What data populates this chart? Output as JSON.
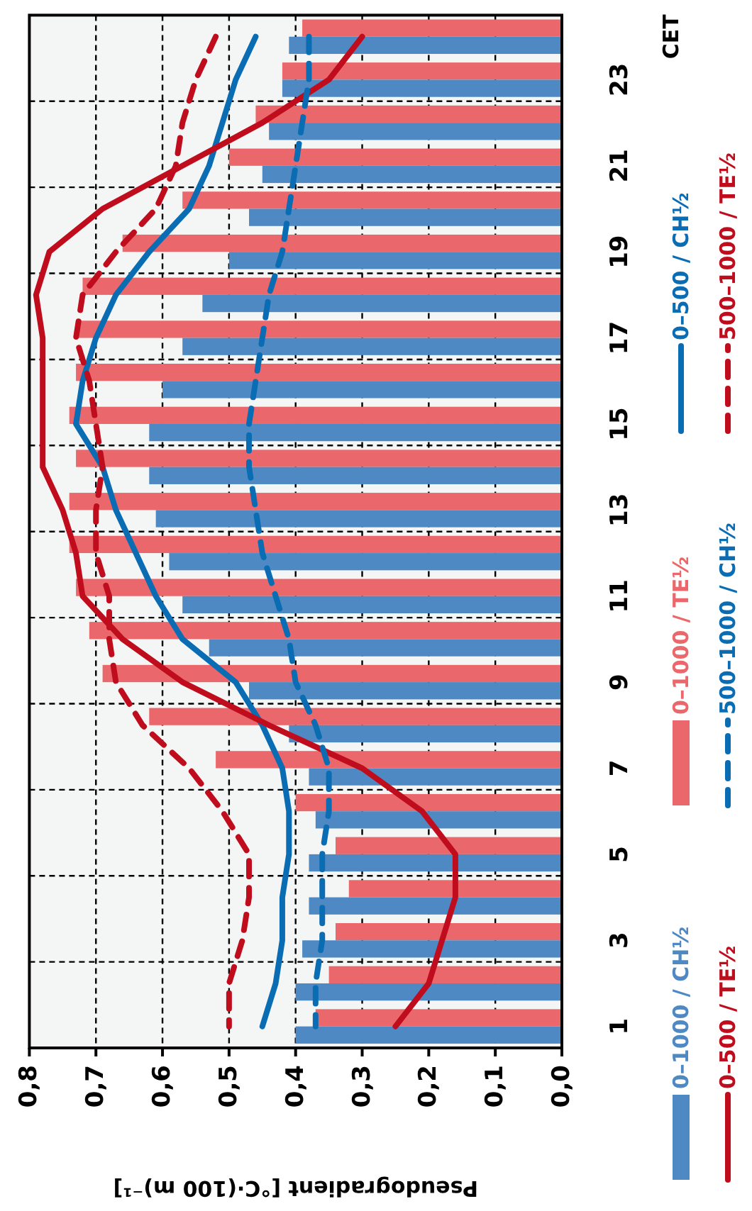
{
  "chart_data": {
    "type": "bar",
    "orientation": "horizontal",
    "xlabel": "Pseudogradient [°C·(100 m)⁻¹]",
    "ylabel": "CET",
    "categories": [
      null,
      "23",
      null,
      "21",
      null,
      "19",
      null,
      "17",
      null,
      "15",
      null,
      "13",
      null,
      "11",
      null,
      "9",
      null,
      "7",
      null,
      "5",
      null,
      "3",
      null,
      "1"
    ],
    "xlim": [
      0.8,
      0.0
    ],
    "xticks": [
      {
        "value": 0.8,
        "label": "0,8"
      },
      {
        "value": 0.7,
        "label": "0,7"
      },
      {
        "value": 0.6,
        "label": "0,6"
      },
      {
        "value": 0.5,
        "label": "0,5"
      },
      {
        "value": 0.4,
        "label": "0,4"
      },
      {
        "value": 0.3,
        "label": "0,3"
      },
      {
        "value": 0.2,
        "label": "0,2"
      },
      {
        "value": 0.1,
        "label": "0,1"
      },
      {
        "value": 0.0,
        "label": "0,0"
      }
    ],
    "grid": true,
    "legend": "right",
    "series": [
      {
        "name": "0–1000 / TE½",
        "color": "#ea686b",
        "values": [
          0.39,
          0.42,
          0.46,
          0.5,
          0.57,
          0.66,
          0.72,
          0.73,
          0.73,
          0.74,
          0.73,
          0.74,
          0.74,
          0.73,
          0.71,
          0.69,
          0.62,
          0.52,
          0.4,
          0.34,
          0.32,
          0.34,
          0.35,
          0.37
        ]
      },
      {
        "name": "0–1000 / CH½",
        "color": "#4f89c3",
        "values": [
          0.41,
          0.42,
          0.44,
          0.45,
          0.47,
          0.5,
          0.54,
          0.57,
          0.6,
          0.62,
          0.62,
          0.61,
          0.59,
          0.57,
          0.53,
          0.47,
          0.41,
          0.38,
          0.37,
          0.38,
          0.38,
          0.39,
          0.4,
          0.4
        ]
      },
      {
        "name": "0–500 / CH½",
        "type": "line",
        "line_style": "solid",
        "color": "#0a6db3",
        "values": [
          0.46,
          0.49,
          0.51,
          0.53,
          0.56,
          0.62,
          0.67,
          0.7,
          0.72,
          0.73,
          0.69,
          0.67,
          0.64,
          0.61,
          0.57,
          0.49,
          0.45,
          0.42,
          0.41,
          0.41,
          0.42,
          0.42,
          0.43,
          0.45
        ]
      },
      {
        "name": "0–500 / TE½",
        "type": "line",
        "line_style": "solid",
        "color": "#c00d1e",
        "values": [
          0.3,
          0.35,
          0.45,
          0.57,
          0.69,
          0.77,
          0.79,
          0.78,
          0.78,
          0.78,
          0.78,
          0.75,
          0.73,
          0.72,
          0.66,
          0.57,
          0.44,
          0.3,
          0.21,
          0.16,
          0.16,
          0.18,
          0.2,
          0.25
        ]
      },
      {
        "name": "500–1000 / CH½",
        "type": "line",
        "line_style": "dashed",
        "color": "#0a6db3",
        "values": [
          0.38,
          0.38,
          0.39,
          0.4,
          0.41,
          0.42,
          0.44,
          0.45,
          0.46,
          0.47,
          0.47,
          0.46,
          0.45,
          0.43,
          0.41,
          0.4,
          0.37,
          0.35,
          0.35,
          0.36,
          0.36,
          0.36,
          0.37,
          0.37
        ]
      },
      {
        "name": "500–1000 / TE½",
        "type": "line",
        "line_style": "dashed",
        "color": "#c00d1e",
        "values": [
          0.52,
          0.55,
          0.57,
          0.58,
          0.61,
          0.67,
          0.72,
          0.73,
          0.71,
          0.7,
          0.69,
          0.7,
          0.7,
          0.68,
          0.68,
          0.67,
          0.63,
          0.56,
          0.51,
          0.47,
          0.47,
          0.48,
          0.5,
          0.5
        ]
      }
    ]
  }
}
